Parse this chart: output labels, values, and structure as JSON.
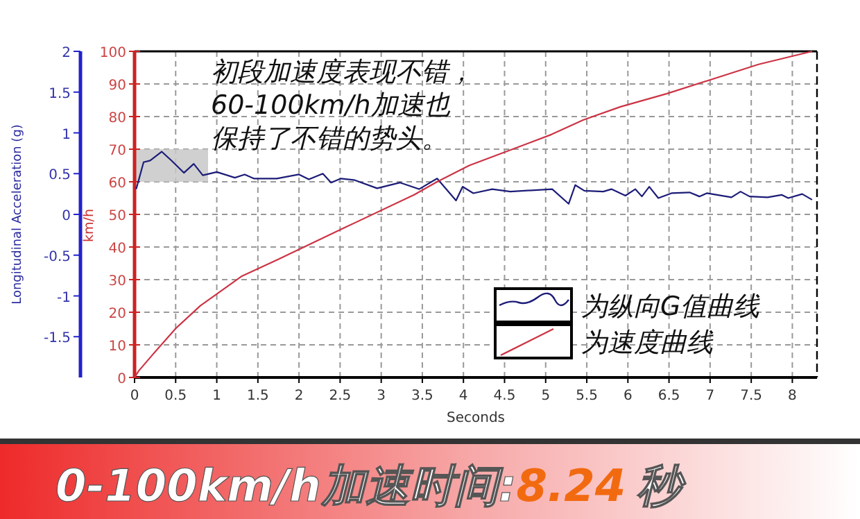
{
  "chart_data": {
    "type": "line",
    "title": "0-100km/h加速时间:",
    "xlabel": "Seconds",
    "ylabel": "Longitudinal Acceleration (g)",
    "y2label": "km/h",
    "annotations": [
      "初段加速度表现不错，",
      "60-100km/h加速也",
      "保持了不错的势头。",
      "8.24",
      "秒"
    ],
    "xlim": [
      0,
      8.3
    ],
    "xticks": [
      0,
      0.5,
      1,
      1.5,
      2,
      2.5,
      3,
      3.5,
      4,
      4.5,
      5,
      5.5,
      6,
      6.5,
      7,
      7.5,
      8
    ],
    "ylim": [
      -2,
      2
    ],
    "yticks": [
      -1.5,
      -1,
      -0.5,
      0,
      0.5,
      1,
      1.5,
      2
    ],
    "y2lim": [
      0,
      100
    ],
    "y2ticks": [
      0,
      10,
      20,
      30,
      40,
      50,
      60,
      70,
      80,
      90,
      100
    ],
    "grid": true,
    "legend": "bottom right",
    "series": [
      {
        "name": "为纵向G值曲线",
        "color": "#1c1c78",
        "x": [
          0.02,
          0.11,
          0.19,
          0.33,
          0.45,
          0.6,
          0.72,
          0.83,
          1.0,
          1.22,
          1.34,
          1.45,
          1.73,
          2.0,
          2.12,
          2.29,
          2.39,
          2.51,
          2.68,
          2.95,
          3.23,
          3.46,
          3.68,
          3.91,
          3.99,
          4.12,
          4.35,
          4.57,
          5.08,
          5.28,
          5.36,
          5.47,
          5.7,
          5.8,
          5.97,
          6.09,
          6.17,
          6.26,
          6.37,
          6.53,
          6.75,
          6.87,
          6.96,
          7.26,
          7.37,
          7.48,
          7.7,
          7.87,
          7.95,
          8.12,
          8.24
        ],
        "values": [
          0.31,
          0.64,
          0.66,
          0.77,
          0.66,
          0.51,
          0.62,
          0.48,
          0.52,
          0.45,
          0.49,
          0.44,
          0.44,
          0.49,
          0.43,
          0.5,
          0.39,
          0.44,
          0.42,
          0.32,
          0.39,
          0.31,
          0.44,
          0.17,
          0.34,
          0.26,
          0.31,
          0.28,
          0.31,
          0.13,
          0.36,
          0.29,
          0.28,
          0.31,
          0.23,
          0.31,
          0.22,
          0.34,
          0.2,
          0.26,
          0.27,
          0.22,
          0.26,
          0.21,
          0.28,
          0.22,
          0.21,
          0.24,
          0.2,
          0.25,
          0.18
        ]
      },
      {
        "name": "为速度曲线",
        "color": "#cc3344",
        "axis": "y2",
        "x": [
          0,
          0.05,
          0.22,
          0.5,
          0.8,
          1.3,
          1.73,
          2.56,
          3.4,
          3.68,
          4.07,
          5.07,
          5.46,
          5.91,
          6.47,
          7.03,
          7.59,
          8.24
        ],
        "values": [
          0,
          2,
          7,
          15,
          22,
          31,
          36,
          46,
          56,
          60,
          65,
          74.5,
          79,
          83,
          87,
          91.5,
          96,
          100
        ]
      }
    ]
  }
}
